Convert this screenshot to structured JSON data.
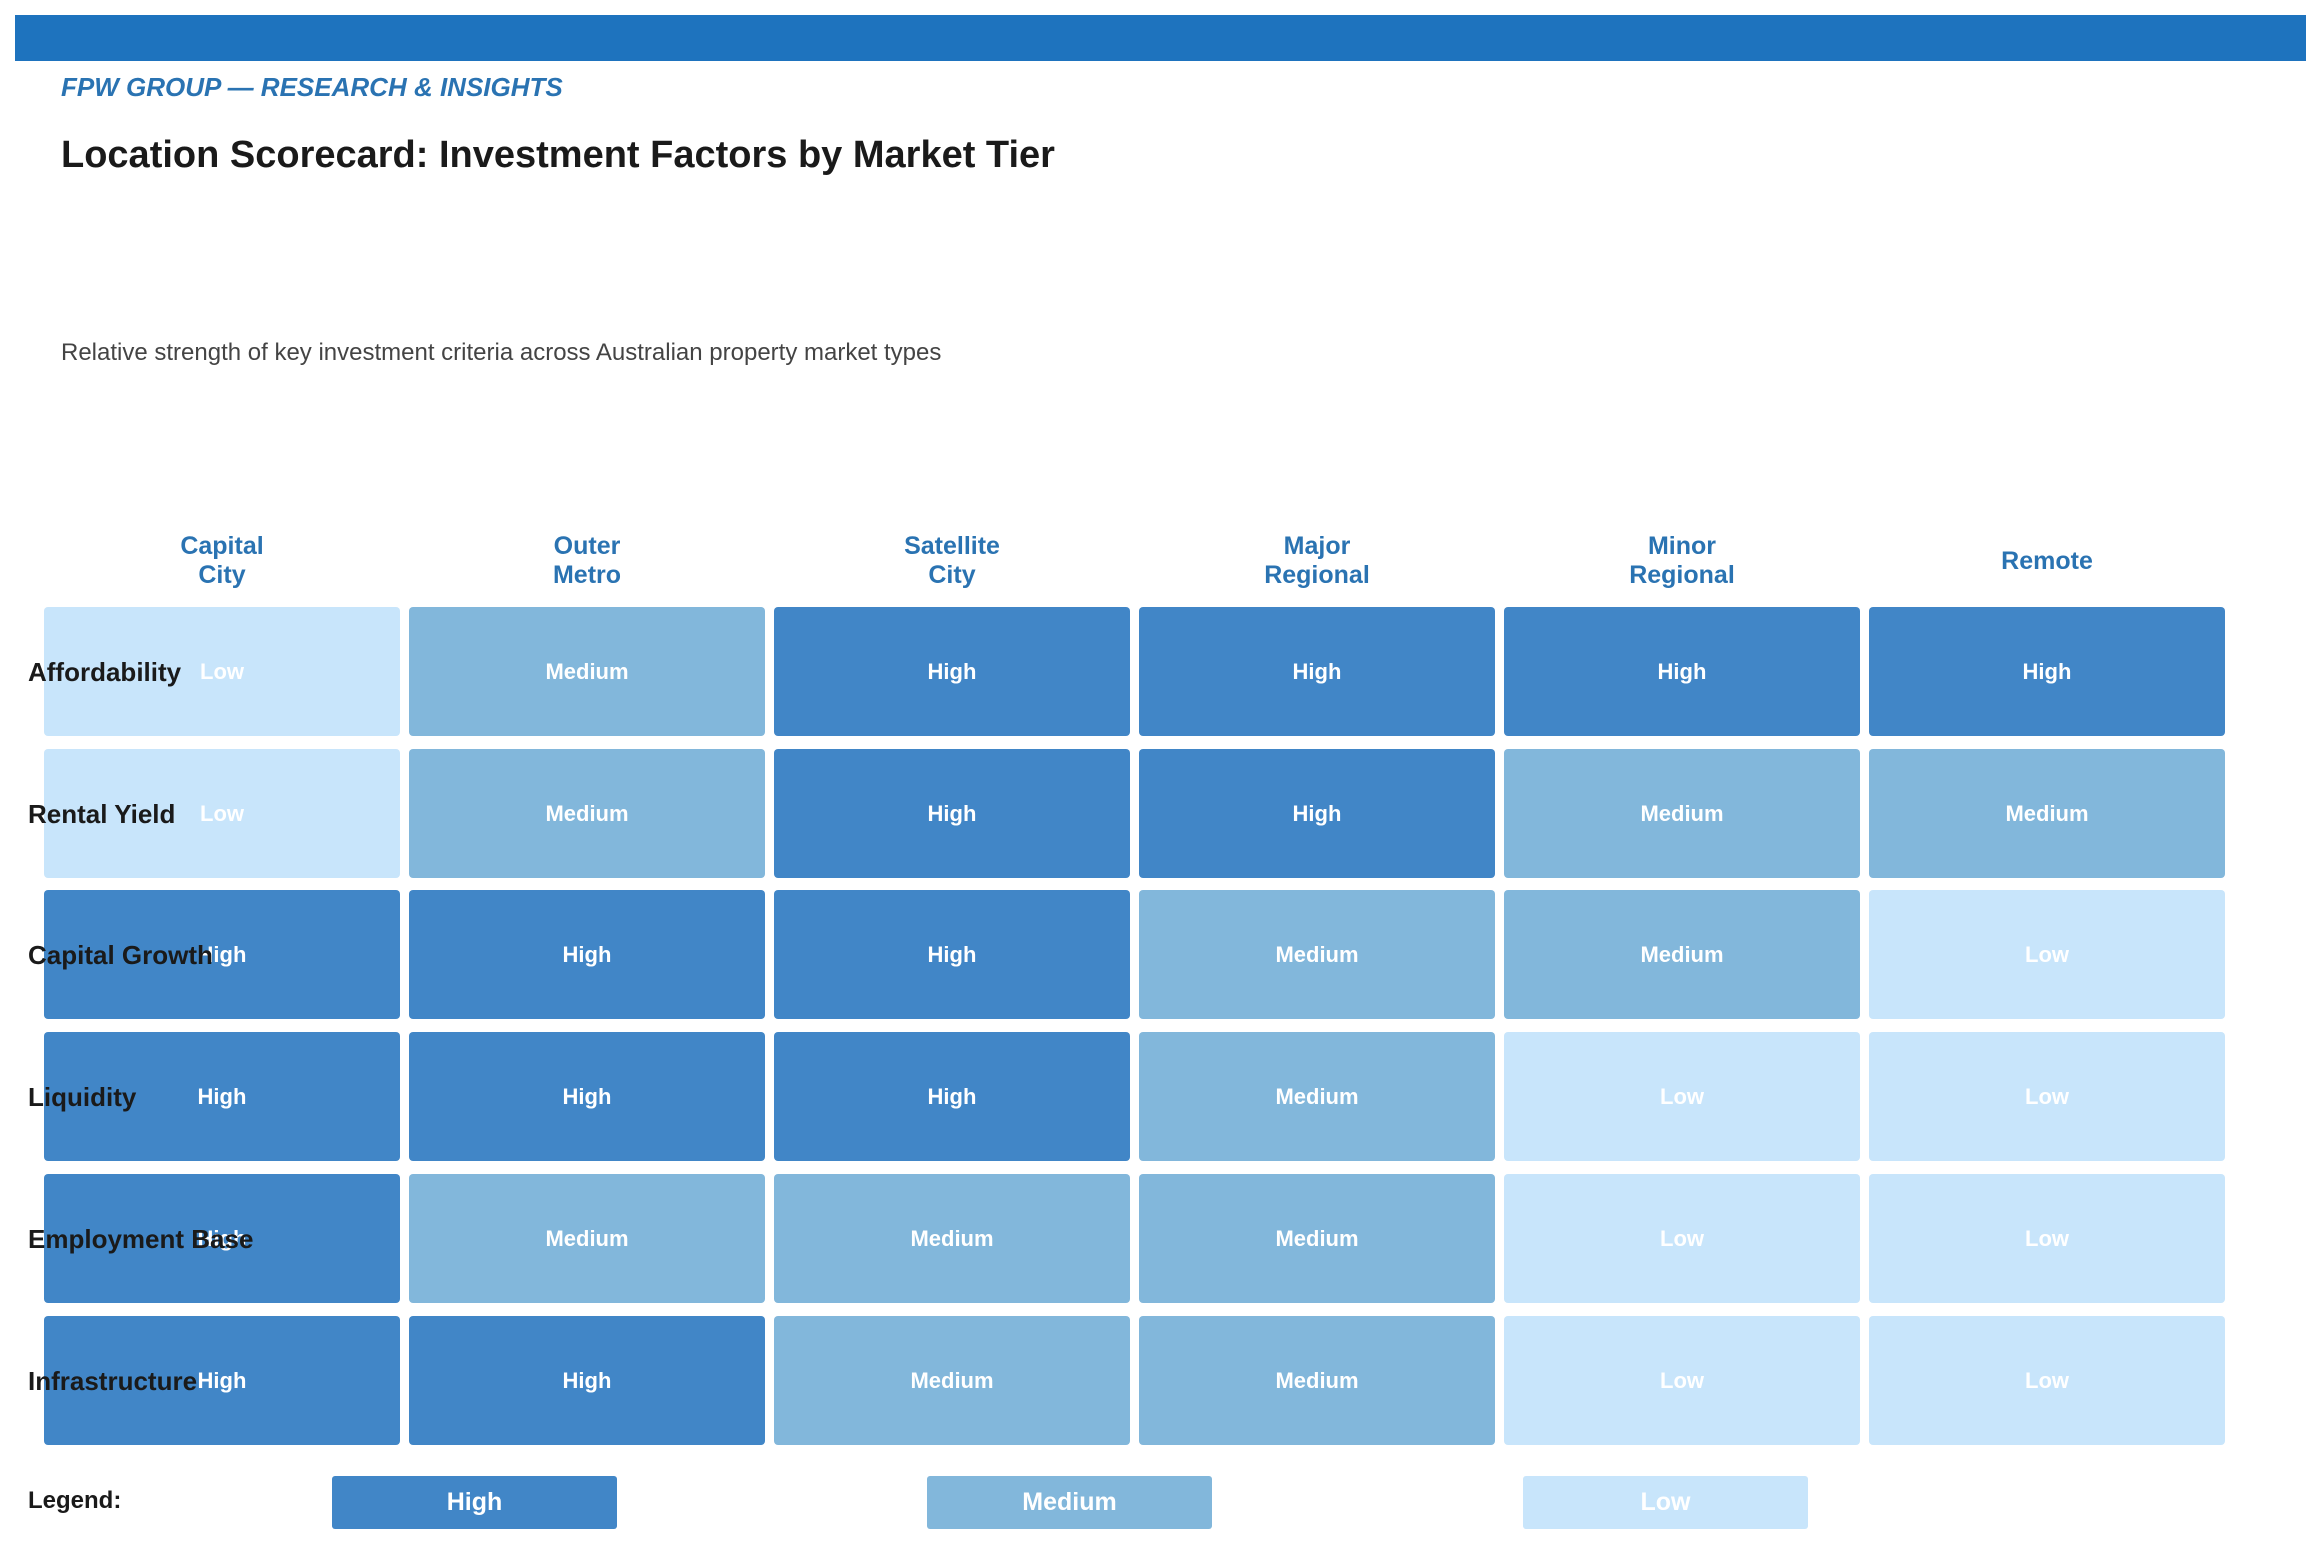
{
  "header": {
    "brand": "FPW GROUP — RESEARCH & INSIGHTS",
    "title": "Location Scorecard: Investment Factors by Market Tier",
    "subtitle": "Relative strength of key investment criteria across Australian property market types"
  },
  "colors": {
    "top_bar": "#1e73be",
    "high": "#4186c7",
    "medium": "#82b7db",
    "low": "#c8e5fb",
    "header_text": "#2a73b2"
  },
  "chart_data": {
    "type": "heatmap",
    "columns": [
      "Capital\nCity",
      "Outer\nMetro",
      "Satellite\nCity",
      "Major\nRegional",
      "Minor\nRegional",
      "Remote"
    ],
    "rows": [
      "Affordability",
      "Rental Yield",
      "Capital Growth",
      "Liquidity",
      "Employment Base",
      "Infrastructure"
    ],
    "values": [
      [
        "Low",
        "Medium",
        "High",
        "High",
        "High",
        "High"
      ],
      [
        "Low",
        "Medium",
        "High",
        "High",
        "Medium",
        "Medium"
      ],
      [
        "High",
        "High",
        "High",
        "Medium",
        "Medium",
        "Low"
      ],
      [
        "High",
        "High",
        "High",
        "Medium",
        "Low",
        "Low"
      ],
      [
        "High",
        "Medium",
        "Medium",
        "Medium",
        "Low",
        "Low"
      ],
      [
        "High",
        "High",
        "Medium",
        "Medium",
        "Low",
        "Low"
      ]
    ],
    "levels": [
      "High",
      "Medium",
      "Low"
    ]
  },
  "legend": {
    "label": "Legend:",
    "items": [
      "High",
      "Medium",
      "Low"
    ]
  }
}
